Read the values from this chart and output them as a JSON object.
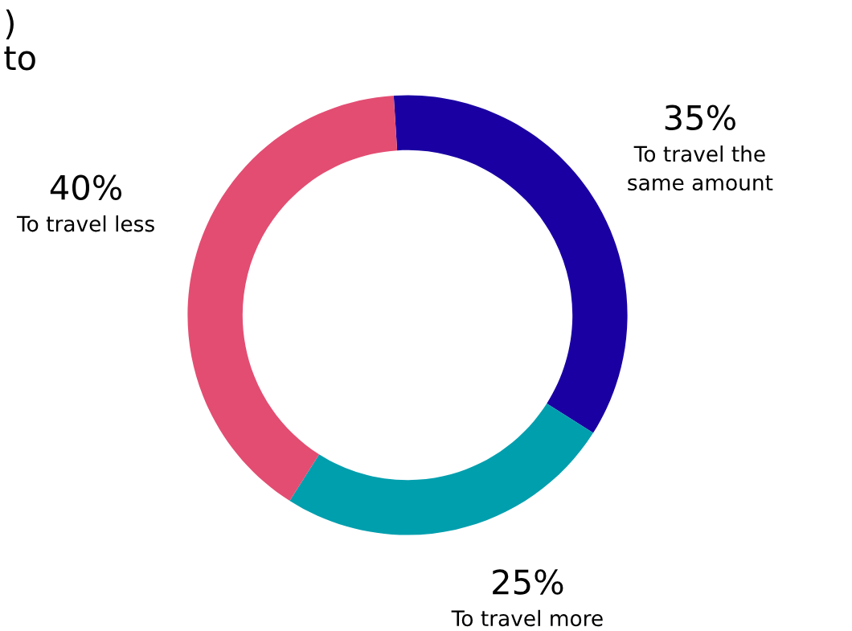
{
  "chart_data": {
    "type": "donut",
    "title": ")\nto",
    "categories": [
      "To travel the same amount",
      "To travel more",
      "To travel less"
    ],
    "values": [
      35,
      25,
      40
    ],
    "colors": [
      "#1a00a3",
      "#009fae",
      "#e34d72"
    ],
    "value_labels": [
      "35%",
      "25%",
      "40%"
    ]
  }
}
